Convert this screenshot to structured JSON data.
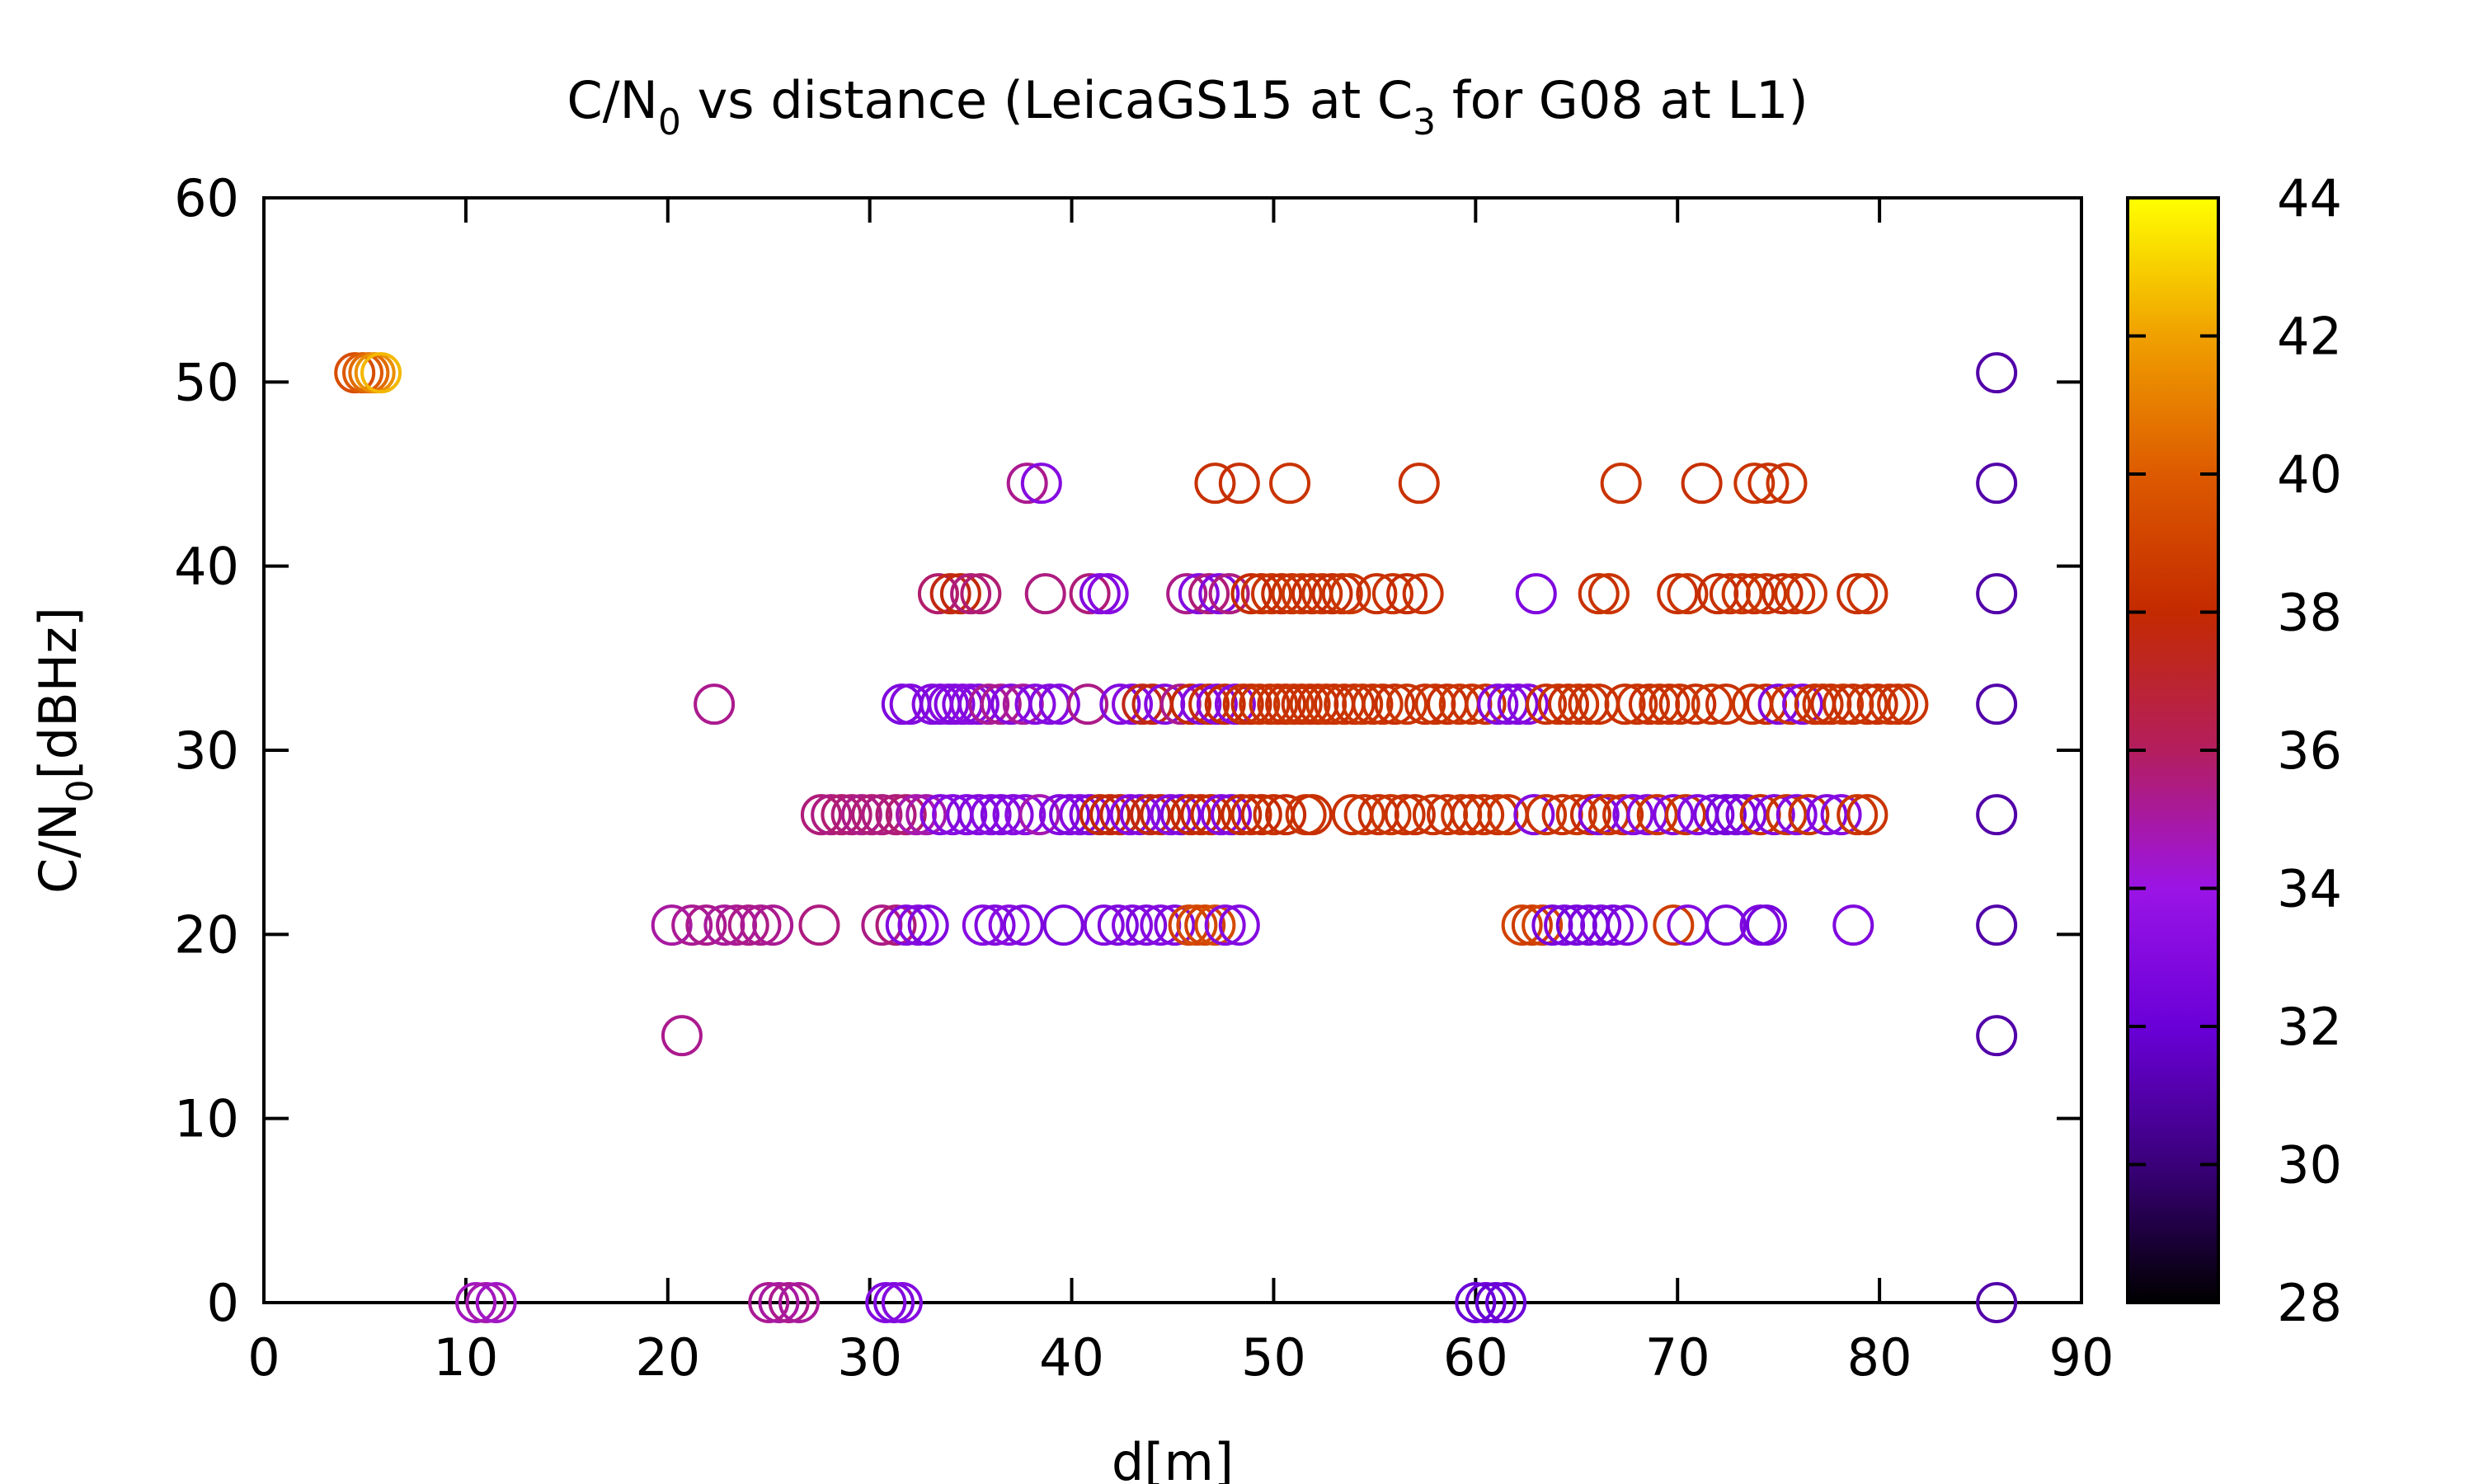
{
  "chart_data": {
    "type": "scatter",
    "title": "C/N₀ vs distance (LeicaGS15 at C₃ for G08 at L1)",
    "title_parts": {
      "p1": "C/N",
      "sub1": "0",
      "p2": " vs distance (LeicaGS15 at C",
      "sub2": "3",
      "p3": " for G08 at L1)"
    },
    "xlabel": "d[m]",
    "ylabel": "C/N₀[dBHz]",
    "ylabel_parts": {
      "main": "C/N",
      "sub": "0",
      "rest": "[dBHz]"
    },
    "xlim": [
      0,
      90
    ],
    "ylim": [
      0,
      60
    ],
    "xticks": [
      "0",
      "10",
      "20",
      "30",
      "40",
      "50",
      "60",
      "70",
      "80",
      "90"
    ],
    "yticks": [
      "0",
      "10",
      "20",
      "30",
      "40",
      "50",
      "60"
    ],
    "colorbar": {
      "label": "",
      "range": [
        28,
        44
      ],
      "ticks": [
        "28",
        "30",
        "32",
        "34",
        "36",
        "38",
        "40",
        "42",
        "44"
      ],
      "palette": "black-purple-red-orange-yellow",
      "colors": [
        "#000000",
        "#3a007a",
        "#6a00d8",
        "#9b14e6",
        "#b41e5e",
        "#c42a00",
        "#dd5a00",
        "#f0a000",
        "#ffff00"
      ]
    },
    "grid": false,
    "marker": "open-circle",
    "points": [
      [
        4.5,
        50.5,
        39.5
      ],
      [
        4.9,
        50.5,
        40.0
      ],
      [
        5.2,
        50.5,
        40.5
      ],
      [
        5.5,
        50.5,
        41.5
      ],
      [
        5.8,
        50.5,
        42.5
      ],
      [
        10.5,
        0,
        34.6
      ],
      [
        11.0,
        0,
        34.8
      ],
      [
        11.5,
        0,
        34.5
      ],
      [
        25.0,
        0,
        35.2
      ],
      [
        25.5,
        0,
        35.0
      ],
      [
        26.0,
        0,
        35.3
      ],
      [
        26.5,
        0,
        35.1
      ],
      [
        30.8,
        0,
        33.0
      ],
      [
        31.2,
        0,
        32.9
      ],
      [
        31.6,
        0,
        33.1
      ],
      [
        60.0,
        0,
        32.0
      ],
      [
        60.5,
        0,
        32.2
      ],
      [
        61.0,
        0,
        31.9
      ],
      [
        61.5,
        0,
        32.1
      ],
      [
        85.8,
        0,
        31.0
      ],
      [
        85.8,
        14.5,
        31.0
      ],
      [
        85.8,
        20.5,
        31.0
      ],
      [
        85.8,
        26.5,
        31.0
      ],
      [
        85.8,
        32.5,
        31.0
      ],
      [
        85.8,
        38.5,
        31.0
      ],
      [
        85.8,
        44.5,
        31.0
      ],
      [
        85.8,
        50.5,
        31.0
      ],
      [
        20.7,
        14.5,
        35.3
      ],
      [
        22.3,
        32.5,
        35.3
      ],
      [
        20.2,
        20.5,
        35.0
      ],
      [
        21.2,
        20.5,
        35.2
      ],
      [
        21.9,
        20.5,
        35.3
      ],
      [
        22.8,
        20.5,
        35.1
      ],
      [
        23.4,
        20.5,
        35.2
      ],
      [
        24.0,
        20.5,
        35.4
      ],
      [
        24.6,
        20.5,
        35.3
      ],
      [
        25.2,
        20.5,
        35.2
      ],
      [
        27.5,
        20.5,
        35.5
      ],
      [
        30.6,
        20.5,
        35.4
      ],
      [
        31.3,
        20.5,
        35.6
      ],
      [
        31.8,
        20.5,
        33.0
      ],
      [
        32.4,
        20.5,
        33.1
      ],
      [
        32.9,
        20.5,
        32.9
      ],
      [
        35.6,
        20.5,
        33.2
      ],
      [
        36.2,
        20.5,
        33.0
      ],
      [
        36.9,
        20.5,
        33.3
      ],
      [
        37.6,
        20.5,
        32.9
      ],
      [
        39.6,
        20.5,
        32.7
      ],
      [
        41.6,
        20.5,
        33.0
      ],
      [
        42.3,
        20.5,
        32.8
      ],
      [
        43.0,
        20.5,
        33.2
      ],
      [
        43.7,
        20.5,
        32.9
      ],
      [
        44.4,
        20.5,
        33.1
      ],
      [
        45.1,
        20.5,
        33.0
      ],
      [
        45.8,
        20.5,
        39.0
      ],
      [
        46.2,
        20.5,
        39.3
      ],
      [
        46.6,
        20.5,
        39.1
      ],
      [
        47.1,
        20.5,
        39.4
      ],
      [
        47.6,
        20.5,
        33.2
      ],
      [
        48.3,
        20.5,
        33.0
      ],
      [
        62.3,
        20.5,
        39.0
      ],
      [
        62.8,
        20.5,
        38.8
      ],
      [
        63.3,
        20.5,
        39.1
      ],
      [
        63.8,
        20.5,
        32.6
      ],
      [
        64.4,
        20.5,
        32.8
      ],
      [
        65.0,
        20.5,
        32.5
      ],
      [
        65.6,
        20.5,
        32.7
      ],
      [
        66.2,
        20.5,
        32.9
      ],
      [
        66.8,
        20.5,
        32.6
      ],
      [
        67.5,
        20.5,
        32.8
      ],
      [
        69.8,
        20.5,
        38.9
      ],
      [
        70.5,
        20.5,
        33.0
      ],
      [
        72.4,
        20.5,
        32.6
      ],
      [
        74.1,
        20.5,
        32.8
      ],
      [
        74.4,
        20.5,
        32.5
      ],
      [
        78.7,
        20.5,
        32.9
      ],
      [
        27.6,
        26.5,
        35.6
      ],
      [
        28.1,
        26.5,
        35.5
      ],
      [
        28.6,
        26.5,
        35.7
      ],
      [
        29.1,
        26.5,
        35.6
      ],
      [
        29.6,
        26.5,
        35.4
      ],
      [
        30.1,
        26.5,
        35.6
      ],
      [
        30.6,
        26.5,
        35.5
      ],
      [
        31.3,
        26.5,
        35.6
      ],
      [
        31.8,
        26.5,
        35.7
      ],
      [
        32.3,
        26.5,
        34.8
      ],
      [
        32.8,
        26.5,
        34.9
      ],
      [
        33.5,
        26.5,
        33.0
      ],
      [
        34.1,
        26.5,
        33.2
      ],
      [
        34.8,
        26.5,
        33.1
      ],
      [
        35.4,
        26.5,
        33.0
      ],
      [
        36.0,
        26.5,
        33.2
      ],
      [
        36.5,
        26.5,
        32.9
      ],
      [
        37.1,
        26.5,
        33.1
      ],
      [
        37.7,
        26.5,
        33.3
      ],
      [
        38.4,
        26.5,
        34.8
      ],
      [
        39.4,
        26.5,
        33.0
      ],
      [
        39.9,
        26.5,
        32.8
      ],
      [
        40.4,
        26.5,
        33.2
      ],
      [
        40.9,
        26.5,
        32.9
      ],
      [
        41.4,
        26.5,
        37.8
      ],
      [
        41.9,
        26.5,
        37.9
      ],
      [
        42.4,
        26.5,
        37.7
      ],
      [
        42.9,
        26.5,
        33.1
      ],
      [
        43.4,
        26.5,
        33.0
      ],
      [
        43.9,
        26.5,
        37.6
      ],
      [
        44.4,
        26.5,
        37.8
      ],
      [
        44.9,
        26.5,
        33.2
      ],
      [
        45.4,
        26.5,
        32.9
      ],
      [
        45.9,
        26.5,
        38.0
      ],
      [
        46.4,
        26.5,
        37.9
      ],
      [
        46.9,
        26.5,
        38.1
      ],
      [
        47.4,
        26.5,
        33.1
      ],
      [
        47.9,
        26.5,
        33.0
      ],
      [
        48.4,
        26.5,
        38.0
      ],
      [
        48.9,
        26.5,
        38.2
      ],
      [
        49.4,
        26.5,
        38.0
      ],
      [
        50.0,
        26.5,
        38.3
      ],
      [
        50.6,
        26.5,
        38.1
      ],
      [
        51.6,
        26.5,
        38.4
      ],
      [
        51.9,
        26.5,
        38.2
      ],
      [
        53.9,
        26.5,
        38.3
      ],
      [
        54.5,
        26.5,
        38.4
      ],
      [
        55.2,
        26.5,
        38.2
      ],
      [
        55.8,
        26.5,
        38.5
      ],
      [
        56.5,
        26.5,
        38.3
      ],
      [
        57.0,
        26.5,
        38.2
      ],
      [
        57.9,
        26.5,
        38.4
      ],
      [
        58.6,
        26.5,
        38.3
      ],
      [
        59.3,
        26.5,
        38.5
      ],
      [
        59.8,
        26.5,
        38.2
      ],
      [
        60.4,
        26.5,
        38.4
      ],
      [
        61.1,
        26.5,
        38.3
      ],
      [
        61.6,
        26.5,
        38.5
      ],
      [
        62.9,
        26.5,
        33.0
      ],
      [
        63.5,
        26.5,
        38.4
      ],
      [
        64.3,
        26.5,
        38.3
      ],
      [
        65.0,
        26.5,
        38.5
      ],
      [
        65.7,
        26.5,
        38.2
      ],
      [
        66.1,
        26.5,
        32.9
      ],
      [
        66.6,
        26.5,
        38.4
      ],
      [
        67.3,
        26.5,
        38.3
      ],
      [
        67.8,
        26.5,
        33.1
      ],
      [
        68.5,
        26.5,
        33.2
      ],
      [
        69.0,
        26.5,
        38.5
      ],
      [
        69.8,
        26.5,
        33.0
      ],
      [
        70.4,
        26.5,
        38.4
      ],
      [
        71.0,
        26.5,
        33.1
      ],
      [
        71.8,
        26.5,
        32.8
      ],
      [
        72.4,
        26.5,
        32.5
      ],
      [
        72.9,
        26.5,
        32.6
      ],
      [
        73.4,
        26.5,
        32.9
      ],
      [
        74.1,
        26.5,
        38.3
      ],
      [
        74.8,
        26.5,
        33.0
      ],
      [
        75.4,
        26.5,
        38.5
      ],
      [
        75.9,
        26.5,
        33.1
      ],
      [
        76.5,
        26.5,
        38.4
      ],
      [
        77.4,
        26.5,
        33.0
      ],
      [
        78.1,
        26.5,
        33.2
      ],
      [
        78.9,
        26.5,
        38.5
      ],
      [
        79.4,
        26.5,
        38.4
      ],
      [
        31.6,
        32.5,
        32.8
      ],
      [
        32.0,
        32.5,
        33.0
      ],
      [
        33.1,
        32.5,
        33.1
      ],
      [
        33.5,
        32.5,
        32.9
      ],
      [
        33.9,
        32.5,
        33.2
      ],
      [
        34.2,
        32.5,
        33.0
      ],
      [
        34.6,
        32.5,
        33.1
      ],
      [
        35.0,
        32.5,
        33.3
      ],
      [
        35.4,
        32.5,
        33.0
      ],
      [
        35.9,
        32.5,
        35.2
      ],
      [
        36.5,
        32.5,
        35.3
      ],
      [
        37.0,
        32.5,
        33.0
      ],
      [
        37.6,
        32.5,
        35.1
      ],
      [
        38.2,
        32.5,
        33.2
      ],
      [
        38.9,
        32.5,
        33.1
      ],
      [
        39.4,
        32.5,
        33.0
      ],
      [
        40.8,
        32.5,
        35.4
      ],
      [
        42.4,
        32.5,
        33.0
      ],
      [
        43.0,
        32.5,
        33.2
      ],
      [
        43.5,
        32.5,
        37.5
      ],
      [
        44.0,
        32.5,
        37.6
      ],
      [
        44.6,
        32.5,
        33.1
      ],
      [
        45.4,
        32.5,
        35.3
      ],
      [
        45.9,
        32.5,
        38.0
      ],
      [
        46.4,
        32.5,
        33.0
      ],
      [
        46.8,
        32.5,
        38.2
      ],
      [
        47.2,
        32.5,
        33.1
      ],
      [
        47.6,
        32.5,
        38.1
      ],
      [
        48.1,
        32.5,
        33.2
      ],
      [
        48.5,
        32.5,
        38.3
      ],
      [
        48.9,
        32.5,
        38.1
      ],
      [
        49.3,
        32.5,
        38.4
      ],
      [
        49.8,
        32.5,
        38.3
      ],
      [
        50.2,
        32.5,
        38.4
      ],
      [
        50.6,
        32.5,
        38.2
      ],
      [
        51.0,
        32.5,
        38.5
      ],
      [
        51.4,
        32.5,
        38.3
      ],
      [
        51.8,
        32.5,
        38.4
      ],
      [
        52.2,
        32.5,
        38.2
      ],
      [
        52.6,
        32.5,
        38.5
      ],
      [
        53.0,
        32.5,
        38.3
      ],
      [
        53.5,
        32.5,
        38.4
      ],
      [
        54.0,
        32.5,
        38.2
      ],
      [
        54.4,
        32.5,
        38.5
      ],
      [
        54.9,
        32.5,
        38.3
      ],
      [
        55.4,
        32.5,
        38.4
      ],
      [
        56.0,
        32.5,
        38.2
      ],
      [
        56.6,
        32.5,
        38.5
      ],
      [
        57.5,
        32.5,
        38.3
      ],
      [
        58.0,
        32.5,
        38.4
      ],
      [
        58.6,
        32.5,
        38.2
      ],
      [
        59.2,
        32.5,
        38.5
      ],
      [
        59.8,
        32.5,
        38.3
      ],
      [
        60.5,
        32.5,
        38.4
      ],
      [
        61.1,
        32.5,
        33.0
      ],
      [
        61.6,
        32.5,
        33.1
      ],
      [
        62.1,
        32.5,
        32.9
      ],
      [
        62.6,
        32.5,
        33.2
      ],
      [
        63.5,
        32.5,
        38.3
      ],
      [
        64.1,
        32.5,
        38.4
      ],
      [
        64.6,
        32.5,
        38.2
      ],
      [
        65.1,
        32.5,
        38.5
      ],
      [
        65.6,
        32.5,
        38.3
      ],
      [
        66.1,
        32.5,
        38.4
      ],
      [
        67.4,
        32.5,
        38.3
      ],
      [
        68.0,
        32.5,
        38.4
      ],
      [
        68.6,
        32.5,
        38.2
      ],
      [
        69.1,
        32.5,
        38.5
      ],
      [
        69.6,
        32.5,
        38.3
      ],
      [
        70.1,
        32.5,
        38.4
      ],
      [
        70.9,
        32.5,
        38.2
      ],
      [
        71.7,
        32.5,
        38.5
      ],
      [
        72.4,
        32.5,
        38.3
      ],
      [
        73.7,
        32.5,
        38.4
      ],
      [
        74.4,
        32.5,
        38.2
      ],
      [
        75.0,
        32.5,
        32.9
      ],
      [
        75.6,
        32.5,
        38.4
      ],
      [
        76.2,
        32.5,
        33.1
      ],
      [
        76.8,
        32.5,
        38.3
      ],
      [
        77.2,
        32.5,
        38.4
      ],
      [
        77.6,
        32.5,
        38.2
      ],
      [
        78.2,
        32.5,
        38.5
      ],
      [
        78.7,
        32.5,
        38.3
      ],
      [
        79.4,
        32.5,
        38.4
      ],
      [
        79.9,
        32.5,
        38.2
      ],
      [
        80.5,
        32.5,
        38.5
      ],
      [
        80.9,
        32.5,
        38.3
      ],
      [
        81.4,
        32.5,
        38.4
      ],
      [
        33.4,
        38.5,
        35.8
      ],
      [
        34.0,
        38.5,
        37.6
      ],
      [
        34.5,
        38.5,
        37.8
      ],
      [
        35.0,
        38.5,
        35.6
      ],
      [
        35.5,
        38.5,
        35.7
      ],
      [
        38.7,
        38.5,
        35.5
      ],
      [
        40.9,
        38.5,
        35.6
      ],
      [
        41.4,
        38.5,
        33.0
      ],
      [
        41.8,
        38.5,
        33.2
      ],
      [
        45.7,
        38.5,
        35.4
      ],
      [
        46.3,
        38.5,
        33.1
      ],
      [
        46.8,
        38.5,
        35.6
      ],
      [
        47.3,
        38.5,
        33.0
      ],
      [
        47.8,
        38.5,
        35.5
      ],
      [
        48.9,
        38.5,
        38.0
      ],
      [
        49.4,
        38.5,
        38.2
      ],
      [
        49.9,
        38.5,
        38.4
      ],
      [
        50.4,
        38.5,
        38.1
      ],
      [
        50.9,
        38.5,
        38.3
      ],
      [
        51.4,
        38.5,
        38.5
      ],
      [
        51.9,
        38.5,
        38.2
      ],
      [
        52.4,
        38.5,
        38.4
      ],
      [
        52.9,
        38.5,
        38.1
      ],
      [
        53.4,
        38.5,
        38.3
      ],
      [
        53.8,
        38.5,
        38.5
      ],
      [
        55.1,
        38.5,
        38.2
      ],
      [
        55.9,
        38.5,
        38.4
      ],
      [
        56.6,
        38.5,
        38.1
      ],
      [
        57.4,
        38.5,
        38.3
      ],
      [
        63.0,
        38.5,
        32.8
      ],
      [
        66.1,
        38.5,
        38.3
      ],
      [
        66.6,
        38.5,
        38.4
      ],
      [
        70.0,
        38.5,
        38.2
      ],
      [
        70.5,
        38.5,
        38.4
      ],
      [
        72.0,
        38.5,
        38.1
      ],
      [
        72.6,
        38.5,
        38.3
      ],
      [
        73.2,
        38.5,
        38.5
      ],
      [
        73.8,
        38.5,
        38.2
      ],
      [
        74.4,
        38.5,
        38.4
      ],
      [
        75.2,
        38.5,
        38.1
      ],
      [
        75.8,
        38.5,
        38.3
      ],
      [
        76.4,
        38.5,
        38.5
      ],
      [
        78.9,
        38.5,
        38.2
      ],
      [
        79.4,
        38.5,
        38.4
      ],
      [
        37.8,
        44.5,
        35.3
      ],
      [
        38.5,
        44.5,
        33.1
      ],
      [
        47.1,
        44.5,
        38.3
      ],
      [
        48.3,
        44.5,
        38.2
      ],
      [
        50.8,
        44.5,
        38.4
      ],
      [
        57.2,
        44.5,
        38.3
      ],
      [
        67.2,
        44.5,
        38.4
      ],
      [
        71.2,
        44.5,
        38.2
      ],
      [
        73.8,
        44.5,
        38.5
      ],
      [
        74.5,
        44.5,
        38.3
      ],
      [
        75.4,
        44.5,
        38.4
      ]
    ]
  }
}
